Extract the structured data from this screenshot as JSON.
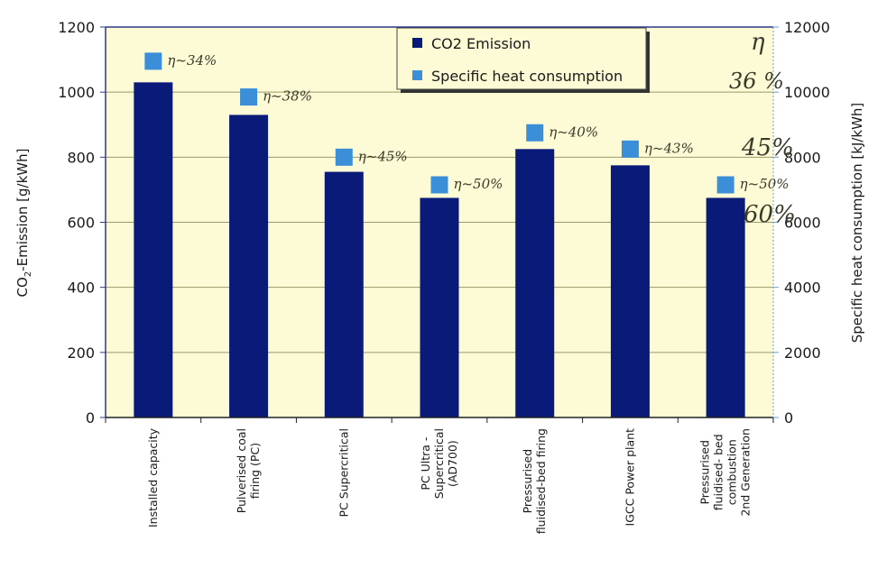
{
  "chart_data": {
    "type": "bar",
    "title": "",
    "categories": [
      [
        "Installed capacity"
      ],
      [
        "Pulverised coal",
        "firing (PC)"
      ],
      [
        "PC Supercritical"
      ],
      [
        "PC Ultra -",
        "Supercritical",
        "(AD700)"
      ],
      [
        "Pressurised",
        "fluidised-bed firing"
      ],
      [
        "IGCC Power plant"
      ],
      [
        "Pressurised",
        "fluidised- bed",
        "combustion",
        "2nd Generation"
      ]
    ],
    "series": [
      {
        "name": "CO2 Emission",
        "type": "bar",
        "axis": "left",
        "color": "#0a1a78",
        "values": [
          1030,
          930,
          755,
          675,
          825,
          775,
          675
        ]
      },
      {
        "name": "Specific heat consumption",
        "type": "marker",
        "axis": "right",
        "color": "#3a8fd8",
        "values": [
          10950,
          9850,
          8000,
          7150,
          8750,
          8250,
          7150
        ]
      }
    ],
    "ylabel": "CO2-Emission [g/kWh]",
    "ylabel_parts": {
      "pre": "CO",
      "sub": "2",
      "post": "-Emission [g/kWh]"
    },
    "y2label": "Specific heat consumption [kJ/kWh]",
    "xlabel": "",
    "ylim": [
      0,
      1200
    ],
    "y2lim": [
      0,
      12000
    ],
    "yticks": [
      "0",
      "200",
      "400",
      "600",
      "800",
      "1000",
      "1200"
    ],
    "y2ticks": [
      "0",
      "2000",
      "4000",
      "6000",
      "8000",
      "10000",
      "12000"
    ],
    "grid": true,
    "legend": {
      "placement": "top-center",
      "entries": [
        "CO2 Emission",
        "Specific heat consumption"
      ]
    },
    "annotations": {
      "efficiency_labels": [
        "η~34%",
        "η~38%",
        "η~45%",
        "η~50%",
        "η~40%",
        "η~43%",
        "η~50%"
      ],
      "right_margin_notes": [
        "η",
        "36 %",
        "45%",
        "60%"
      ]
    }
  },
  "colors": {
    "plot_background": "#fdfbd6",
    "bar": "#0a1a78",
    "marker": "#3a8fd8",
    "gridline": "#9a9a6a",
    "axis": "#2a3a8a"
  }
}
